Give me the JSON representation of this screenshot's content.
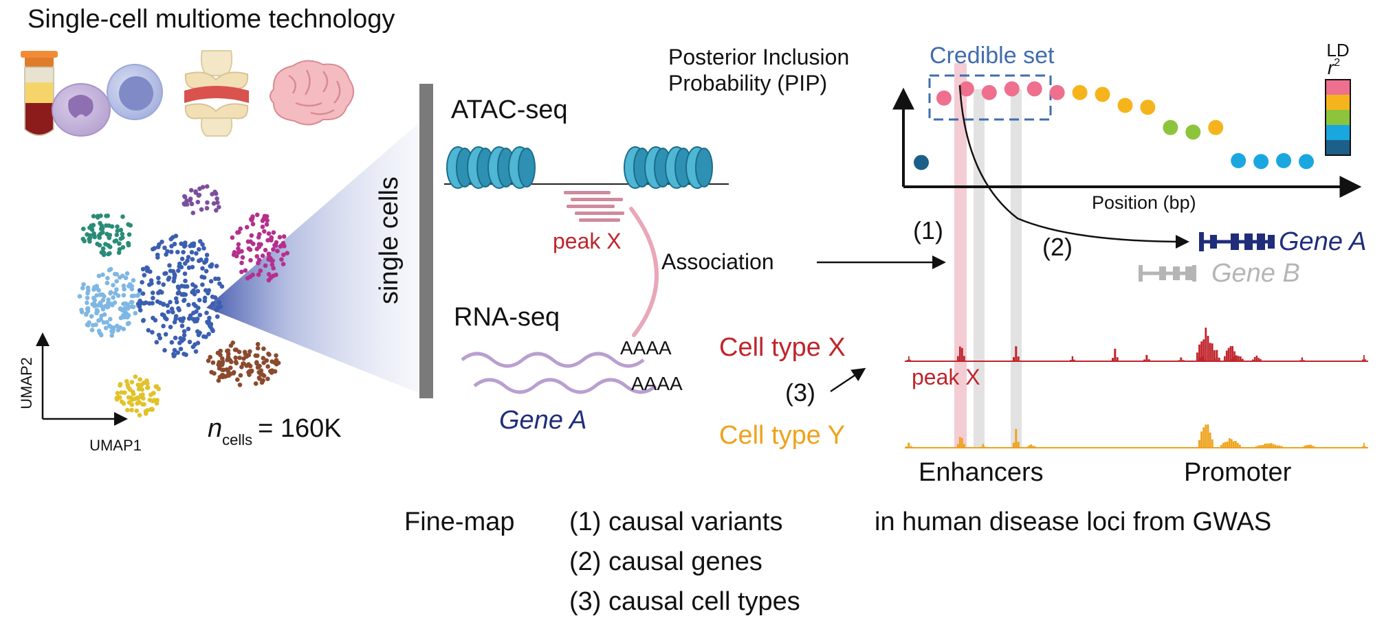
{
  "title": "Single-cell multiome technology",
  "umap": {
    "x_label": "UMAP1",
    "y_label": "UMAP2",
    "n_label_main": "n",
    "n_label_sub": "cells",
    "n_value": "= 160K"
  },
  "single_cells_label": "single cells",
  "atac": {
    "title": "ATAC-seq",
    "peak_label": "peak X"
  },
  "rna": {
    "title": "RNA-seq",
    "polyA_1": "AAAA",
    "polyA_2": "AAAA",
    "gene_label": "Gene A"
  },
  "association_label": "Association",
  "pip_plot": {
    "ylabel_line1": "Posterior Inclusion",
    "ylabel_line2": "Probability (PIP)",
    "xlabel": "Position (bp)",
    "credible_set_label": "Credible set",
    "ld_label_line1": "LD",
    "ld_label_line2": "r",
    "ld_label_sup": "2",
    "ld_colors": [
      "#ef6f8e",
      "#f6b41c",
      "#8cc43c",
      "#1aa7e0",
      "#1c5f88"
    ]
  },
  "markers": {
    "one": "(1)",
    "two": "(2)",
    "three": "(3)"
  },
  "genes": {
    "gene_a": "Gene A",
    "gene_b": "Gene B"
  },
  "tracks": {
    "cell_type_x": "Cell type X",
    "cell_type_y": "Cell type Y",
    "peak_label": "peak X",
    "enhancers_label": "Enhancers",
    "promoter_label": "Promoter"
  },
  "finemap": {
    "prefix": "Fine-map",
    "item1": "(1) causal variants",
    "suffix": "in human disease loci from GWAS",
    "item2": "(2) causal genes",
    "item3": "(3) causal cell types"
  },
  "colors": {
    "red": "#c0242b",
    "orange": "#eea21c",
    "navy": "#1f2d7a",
    "credible_blue": "#3f6cad"
  },
  "chart_data": {
    "type": "scatter",
    "xlabel": "Position (bp)",
    "ylabel": "Posterior Inclusion Probability (PIP)",
    "points": [
      {
        "x": 1,
        "y": 0.1,
        "ld": 5
      },
      {
        "x": 2,
        "y": 0.8,
        "ld": 1
      },
      {
        "x": 3,
        "y": 0.9,
        "ld": 1
      },
      {
        "x": 4,
        "y": 0.86,
        "ld": 1
      },
      {
        "x": 5,
        "y": 0.9,
        "ld": 1
      },
      {
        "x": 6,
        "y": 0.9,
        "ld": 1
      },
      {
        "x": 7,
        "y": 0.86,
        "ld": 1
      },
      {
        "x": 8,
        "y": 0.86,
        "ld": 2
      },
      {
        "x": 9,
        "y": 0.84,
        "ld": 2
      },
      {
        "x": 10,
        "y": 0.72,
        "ld": 2
      },
      {
        "x": 11,
        "y": 0.7,
        "ld": 2
      },
      {
        "x": 12,
        "y": 0.48,
        "ld": 3
      },
      {
        "x": 13,
        "y": 0.43,
        "ld": 3
      },
      {
        "x": 14,
        "y": 0.48,
        "ld": 2
      },
      {
        "x": 15,
        "y": 0.12,
        "ld": 4
      },
      {
        "x": 16,
        "y": 0.11,
        "ld": 4
      },
      {
        "x": 17,
        "y": 0.12,
        "ld": 4
      },
      {
        "x": 18,
        "y": 0.11,
        "ld": 4
      }
    ],
    "ld_scale": [
      "#ef6f8e",
      "#f6b41c",
      "#8cc43c",
      "#1aa7e0",
      "#1c5f88"
    ],
    "legend": "right"
  }
}
